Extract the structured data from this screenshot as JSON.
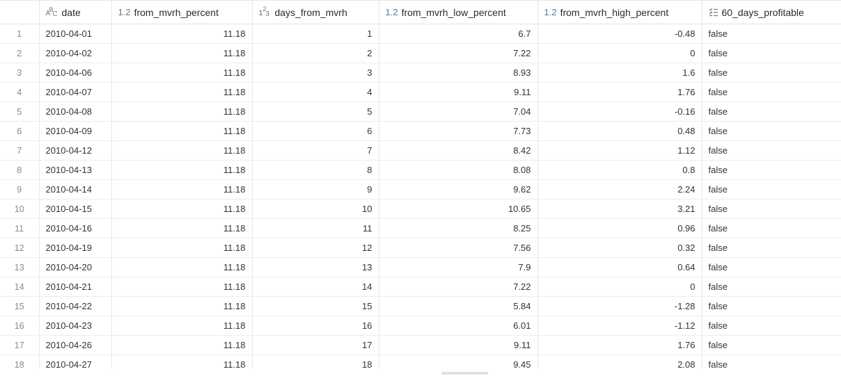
{
  "table": {
    "columns": [
      {
        "key": "idx",
        "label": "",
        "type_icon": ""
      },
      {
        "key": "date",
        "label": "date",
        "type_icon": "text-type-icon"
      },
      {
        "key": "from_mvrh_percent",
        "label": "from_mvrh_percent",
        "type_icon": "decimal-type-icon",
        "icon_text": "1.2"
      },
      {
        "key": "days_from_mvrh",
        "label": "days_from_mvrh",
        "type_icon": "integer-type-icon"
      },
      {
        "key": "from_mvrh_low_percent",
        "label": "from_mvrh_low_percent",
        "type_icon": "decimal-type-icon",
        "icon_text": "1.2"
      },
      {
        "key": "from_mvrh_high_percent",
        "label": "from_mvrh_high_percent",
        "type_icon": "decimal-type-icon",
        "icon_text": "1.2"
      },
      {
        "key": "60_days_profitable",
        "label": "60_days_profitable",
        "type_icon": "boolean-list-icon"
      }
    ],
    "rows": [
      [
        "1",
        "2010-04-01",
        "11.18",
        "1",
        "6.7",
        "-0.48",
        "false"
      ],
      [
        "2",
        "2010-04-02",
        "11.18",
        "2",
        "7.22",
        "0",
        "false"
      ],
      [
        "3",
        "2010-04-06",
        "11.18",
        "3",
        "8.93",
        "1.6",
        "false"
      ],
      [
        "4",
        "2010-04-07",
        "11.18",
        "4",
        "9.11",
        "1.76",
        "false"
      ],
      [
        "5",
        "2010-04-08",
        "11.18",
        "5",
        "7.04",
        "-0.16",
        "false"
      ],
      [
        "6",
        "2010-04-09",
        "11.18",
        "6",
        "7.73",
        "0.48",
        "false"
      ],
      [
        "7",
        "2010-04-12",
        "11.18",
        "7",
        "8.42",
        "1.12",
        "false"
      ],
      [
        "8",
        "2010-04-13",
        "11.18",
        "8",
        "8.08",
        "0.8",
        "false"
      ],
      [
        "9",
        "2010-04-14",
        "11.18",
        "9",
        "9.62",
        "2.24",
        "false"
      ],
      [
        "10",
        "2010-04-15",
        "11.18",
        "10",
        "10.65",
        "3.21",
        "false"
      ],
      [
        "11",
        "2010-04-16",
        "11.18",
        "11",
        "8.25",
        "0.96",
        "false"
      ],
      [
        "12",
        "2010-04-19",
        "11.18",
        "12",
        "7.56",
        "0.32",
        "false"
      ],
      [
        "13",
        "2010-04-20",
        "11.18",
        "13",
        "7.9",
        "0.64",
        "false"
      ],
      [
        "14",
        "2010-04-21",
        "11.18",
        "14",
        "7.22",
        "0",
        "false"
      ],
      [
        "15",
        "2010-04-22",
        "11.18",
        "15",
        "5.84",
        "-1.28",
        "false"
      ],
      [
        "16",
        "2010-04-23",
        "11.18",
        "16",
        "6.01",
        "-1.12",
        "false"
      ],
      [
        "17",
        "2010-04-26",
        "11.18",
        "17",
        "9.11",
        "1.76",
        "false"
      ],
      [
        "18",
        "2010-04-27",
        "11.18",
        "18",
        "9.45",
        "2.08",
        "false"
      ]
    ]
  },
  "colors": {
    "type_icon": "#5f7893",
    "grid_line": "#e8e8e8",
    "index_text": "#8a8a8a"
  }
}
